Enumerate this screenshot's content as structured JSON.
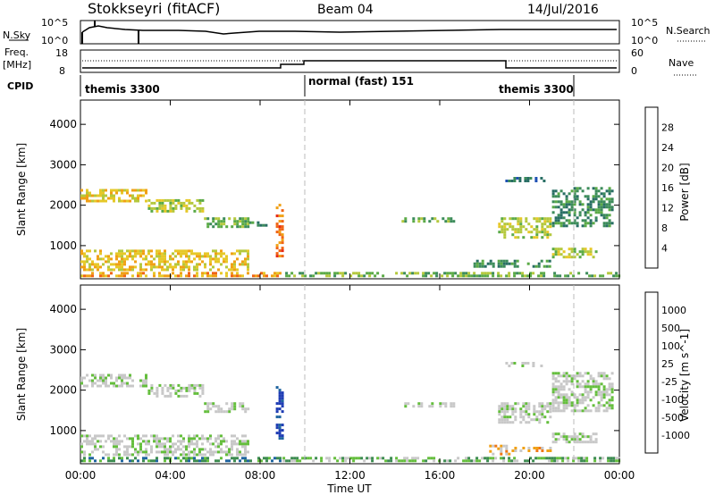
{
  "header": {
    "station": "Stokkseyri (fitACF)",
    "beam": "Beam 04",
    "date": "14/Jul/2016"
  },
  "top_panels": {
    "nsky_label": "N.Sky",
    "nsearch_label": "N.Search",
    "left_ticks_top": [
      "10^5",
      "10^0"
    ],
    "right_ticks_top": [
      "10^5",
      "10^0"
    ],
    "freq_label_1": "Freq.",
    "freq_label_2": "[MHz]",
    "freq_ticks": [
      "18",
      "8"
    ],
    "nave_label": "Nave",
    "nave_ticks": [
      "60",
      "0"
    ],
    "cpid_label": "CPID",
    "cpid_segments": [
      {
        "label": "themis 3300",
        "start_h": 0,
        "end_h": 10
      },
      {
        "label": "normal (fast) 151",
        "start_h": 10,
        "end_h": 22
      },
      {
        "label": "themis 3300",
        "start_h": 22,
        "end_h": 24
      }
    ]
  },
  "chart_data": [
    {
      "type": "heatmap",
      "title": "",
      "ylabel": "Slant Range [km]",
      "xlabel": "",
      "xlim_hours": [
        0,
        24
      ],
      "ylim": [
        180,
        4600
      ],
      "yticks": [
        1000,
        2000,
        3000,
        4000
      ],
      "xticks": [
        "00:00",
        "04:00",
        "08:00",
        "12:00",
        "16:00",
        "20:00",
        "00:00"
      ],
      "colorbar": {
        "label": "Power [dB]",
        "ticks": [
          "4",
          "8",
          "12",
          "16",
          "20",
          "24",
          "28"
        ],
        "colors": [
          "#1428dc",
          "#1e50b4",
          "#286e64",
          "#3c8c5a",
          "#5aaa46",
          "#b4c83c",
          "#e6c828",
          "#f0a014",
          "#f06414",
          "#e62814"
        ]
      },
      "echo_bands": [
        {
          "t0": 0.0,
          "t1": 3.0,
          "r0": 2050,
          "r1": 2400,
          "level": 6
        },
        {
          "t0": 3.0,
          "t1": 5.5,
          "r0": 1800,
          "r1": 2150,
          "level": 5
        },
        {
          "t0": 5.5,
          "t1": 7.5,
          "r0": 1450,
          "r1": 1700,
          "level": 4
        },
        {
          "t0": 0.0,
          "t1": 7.5,
          "r0": 400,
          "r1": 900,
          "level": 6
        },
        {
          "t0": 0.0,
          "t1": 9.0,
          "r0": 200,
          "r1": 350,
          "level": 7
        },
        {
          "t0": 7.5,
          "t1": 8.5,
          "r0": 1450,
          "r1": 1600,
          "level": 3
        },
        {
          "t0": 8.7,
          "t1": 9.0,
          "r0": 700,
          "r1": 2100,
          "level": 8
        },
        {
          "t0": 14.3,
          "t1": 16.7,
          "r0": 1600,
          "r1": 1700,
          "level": 4
        },
        {
          "t0": 18.6,
          "t1": 21.0,
          "r0": 1200,
          "r1": 1700,
          "level": 5
        },
        {
          "t0": 21.0,
          "t1": 23.8,
          "r0": 1450,
          "r1": 2450,
          "level": 3
        },
        {
          "t0": 18.8,
          "t1": 20.7,
          "r0": 2550,
          "r1": 2700,
          "level": 2
        },
        {
          "t0": 17.5,
          "t1": 21.0,
          "r0": 450,
          "r1": 650,
          "level": 3
        },
        {
          "t0": 21.0,
          "t1": 23.0,
          "r0": 700,
          "r1": 950,
          "level": 5
        },
        {
          "t0": 9.0,
          "t1": 24.0,
          "r0": 200,
          "r1": 350,
          "level": 4
        }
      ]
    },
    {
      "type": "heatmap",
      "title": "",
      "ylabel": "Slant Range [km]",
      "xlabel": "Time UT",
      "xlim_hours": [
        0,
        24
      ],
      "ylim": [
        180,
        4600
      ],
      "yticks": [
        1000,
        2000,
        3000,
        4000
      ],
      "xticks": [
        "00:00",
        "04:00",
        "08:00",
        "12:00",
        "16:00",
        "20:00",
        "00:00"
      ],
      "colorbar": {
        "label": "Velocity [m s^-1]",
        "ticks": [
          "1000",
          "500",
          "100",
          "25",
          "-25",
          "-100",
          "-500",
          "-1000"
        ],
        "colors": [
          "#1e3cb4",
          "#1e64a0",
          "#3c8c50",
          "#64be3c",
          "#c8c8c8",
          "#c8c8c8",
          "#f0a014",
          "#f07814",
          "#f04614",
          "#e61414"
        ]
      },
      "echo_bands": [
        {
          "t0": 0.0,
          "t1": 3.0,
          "r0": 2050,
          "r1": 2400,
          "level": 4
        },
        {
          "t0": 3.0,
          "t1": 5.5,
          "r0": 1800,
          "r1": 2150,
          "level": 4
        },
        {
          "t0": 5.5,
          "t1": 7.5,
          "r0": 1450,
          "r1": 1700,
          "level": 4
        },
        {
          "t0": 0.0,
          "t1": 7.5,
          "r0": 400,
          "r1": 900,
          "level": 4
        },
        {
          "t0": 0.0,
          "t1": 9.0,
          "r0": 200,
          "r1": 350,
          "level": 2
        },
        {
          "t0": 8.7,
          "t1": 9.0,
          "r0": 700,
          "r1": 2100,
          "level": 0
        },
        {
          "t0": 14.3,
          "t1": 16.7,
          "r0": 1600,
          "r1": 1700,
          "level": 4
        },
        {
          "t0": 18.6,
          "t1": 21.0,
          "r0": 1200,
          "r1": 1700,
          "level": 4
        },
        {
          "t0": 21.0,
          "t1": 23.8,
          "r0": 1450,
          "r1": 2450,
          "level": 4
        },
        {
          "t0": 18.8,
          "t1": 20.7,
          "r0": 2550,
          "r1": 2700,
          "level": 4
        },
        {
          "t0": 18.2,
          "t1": 19.2,
          "r0": 400,
          "r1": 650,
          "level": 6
        },
        {
          "t0": 19.2,
          "t1": 21.0,
          "r0": 450,
          "r1": 600,
          "level": 6
        },
        {
          "t0": 21.0,
          "t1": 23.0,
          "r0": 700,
          "r1": 950,
          "level": 4
        },
        {
          "t0": 9.0,
          "t1": 24.0,
          "r0": 200,
          "r1": 350,
          "level": 3
        }
      ]
    }
  ]
}
